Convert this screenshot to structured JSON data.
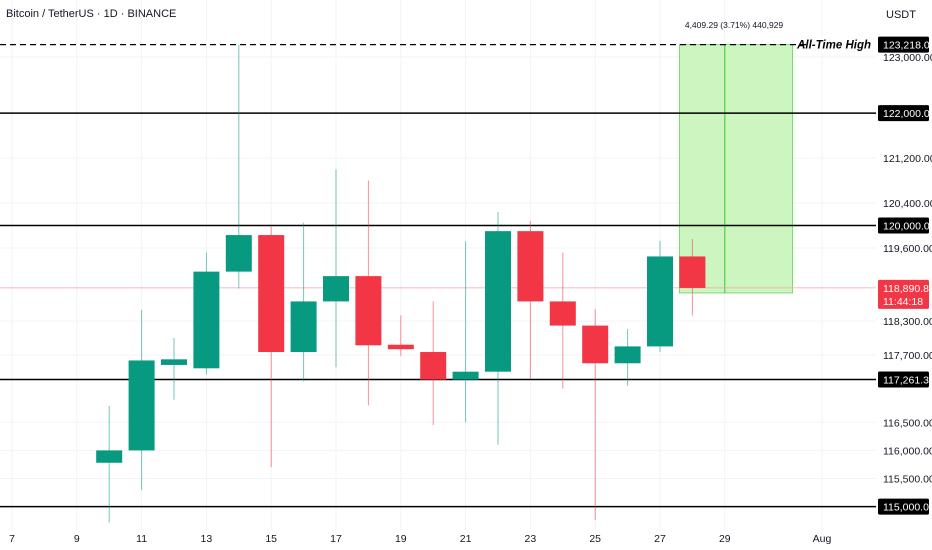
{
  "header": {
    "title": "Bitcoin / TetherUS · 1D · BINANCE"
  },
  "axis": {
    "currency": "USDT"
  },
  "colors": {
    "up": "#089981",
    "down": "#f23645",
    "grid": "#f0f3fa",
    "level": "#000000",
    "axis_text": "#131722",
    "projection_fill": "#ccf5c0",
    "projection_line": "#33cc33",
    "price_line": "#f7a1a8"
  },
  "chart_data": {
    "type": "candlestick",
    "title": "Bitcoin / TetherUS · 1D · BINANCE",
    "ylim": [
      114700,
      123700
    ],
    "x_ticks": [
      {
        "day": 7,
        "label": "7"
      },
      {
        "day": 9,
        "label": "9"
      },
      {
        "day": 11,
        "label": "11"
      },
      {
        "day": 13,
        "label": "13"
      },
      {
        "day": 15,
        "label": "15"
      },
      {
        "day": 17,
        "label": "17"
      },
      {
        "day": 19,
        "label": "19"
      },
      {
        "day": 21,
        "label": "21"
      },
      {
        "day": 23,
        "label": "23"
      },
      {
        "day": 25,
        "label": "25"
      },
      {
        "day": 27,
        "label": "27"
      },
      {
        "day": 29,
        "label": "29"
      },
      {
        "day": 32,
        "label": "Aug"
      }
    ],
    "y_ticks": [
      123000,
      121200,
      120400,
      119600,
      118300,
      117700,
      116500,
      116000,
      115500
    ],
    "y_tick_labels": [
      "123,000.00",
      "121,200.00",
      "120,400.00",
      "119,600.00",
      "118,300.00",
      "117,700.00",
      "116,500.00",
      "116,000.00",
      "115,500.00"
    ],
    "candles": [
      {
        "day": 10,
        "open": 115780,
        "high": 116790,
        "low": 114720,
        "close": 116000
      },
      {
        "day": 11,
        "open": 116000,
        "high": 118500,
        "low": 115300,
        "close": 117600
      },
      {
        "day": 12,
        "open": 117520,
        "high": 118000,
        "low": 116900,
        "close": 117620
      },
      {
        "day": 13,
        "open": 117460,
        "high": 119520,
        "low": 117350,
        "close": 119180
      },
      {
        "day": 14,
        "open": 119180,
        "high": 123218,
        "low": 118880,
        "close": 119830
      },
      {
        "day": 15,
        "open": 119830,
        "high": 120000,
        "low": 115700,
        "close": 117750
      },
      {
        "day": 16,
        "open": 117750,
        "high": 120050,
        "low": 117230,
        "close": 118650
      },
      {
        "day": 17,
        "open": 118650,
        "high": 121000,
        "low": 117480,
        "close": 119100
      },
      {
        "day": 18,
        "open": 119100,
        "high": 120800,
        "low": 116800,
        "close": 117870
      },
      {
        "day": 19,
        "open": 117880,
        "high": 118400,
        "low": 117680,
        "close": 117800
      },
      {
        "day": 20,
        "open": 117750,
        "high": 118650,
        "low": 116450,
        "close": 117260
      },
      {
        "day": 21,
        "open": 117260,
        "high": 119720,
        "low": 116500,
        "close": 117400
      },
      {
        "day": 22,
        "open": 117400,
        "high": 120240,
        "low": 116100,
        "close": 119900
      },
      {
        "day": 23,
        "open": 119900,
        "high": 120080,
        "low": 117270,
        "close": 118650
      },
      {
        "day": 24,
        "open": 118650,
        "high": 119520,
        "low": 117100,
        "close": 118220
      },
      {
        "day": 25,
        "open": 118220,
        "high": 118510,
        "low": 114760,
        "close": 117550
      },
      {
        "day": 26,
        "open": 117550,
        "high": 118160,
        "low": 117150,
        "close": 117850
      },
      {
        "day": 27,
        "open": 117850,
        "high": 119730,
        "low": 117750,
        "close": 119450
      },
      {
        "day": 28,
        "open": 119450,
        "high": 119760,
        "low": 118400,
        "close": 118890
      }
    ],
    "levels": [
      {
        "price": 123218,
        "label": "123,218.00",
        "style": "dashed",
        "annotation": "All-Time High"
      },
      {
        "price": 122000,
        "label": "122,000.00",
        "style": "solid"
      },
      {
        "price": 120000,
        "label": "120,000.00",
        "style": "solid"
      },
      {
        "price": 117261.3,
        "label": "117,261.30",
        "style": "solid"
      },
      {
        "price": 115000,
        "label": "115,000.00",
        "style": "solid"
      }
    ],
    "current_price": {
      "price": 118890.83,
      "label": "118,890.83",
      "countdown": "11:44:18"
    },
    "projection": {
      "from_day": 28,
      "to_day": 30,
      "low": 118800,
      "high": 123218,
      "label": "4,409.29 (3.71%) 440,929"
    }
  }
}
